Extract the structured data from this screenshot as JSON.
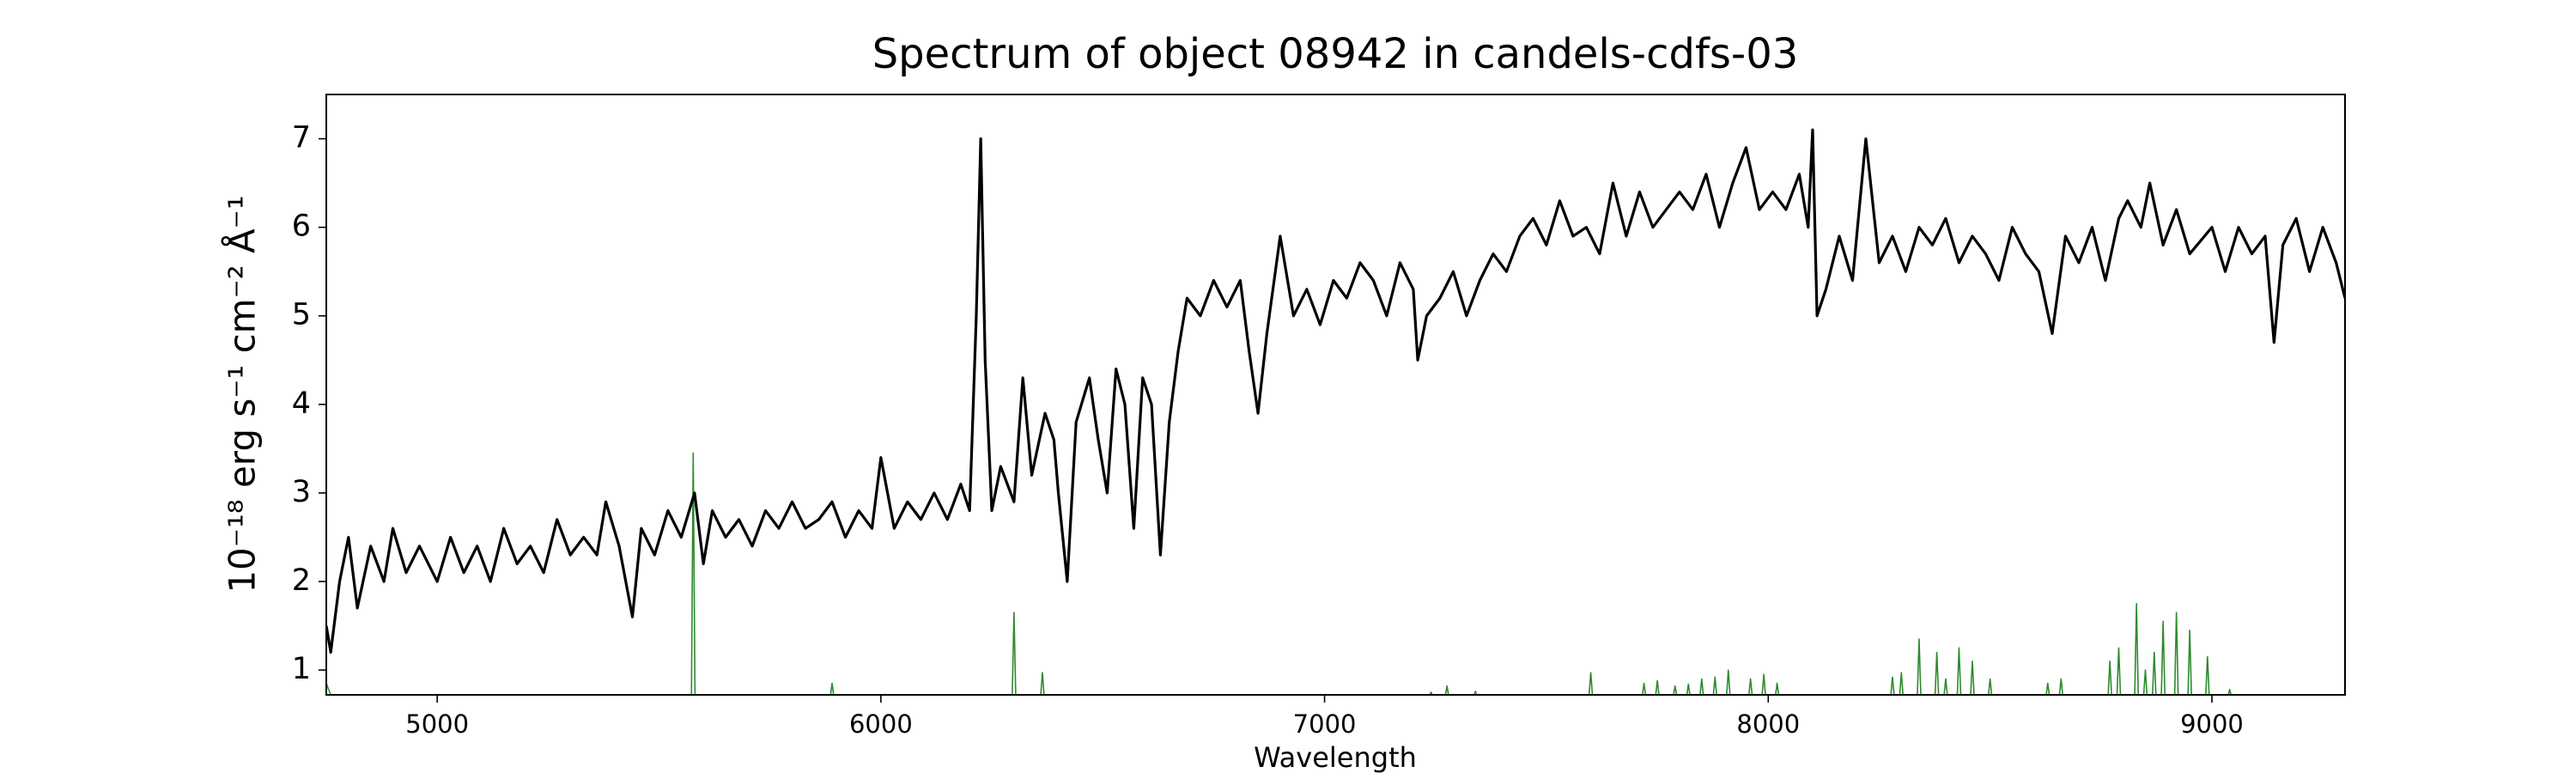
{
  "chart_data": {
    "type": "line",
    "title": "Spectrum of object 08942 in candels-cdfs-03",
    "xlabel": "Wavelength",
    "ylabel": "10⁻¹⁸ erg s⁻¹ cm⁻² Å⁻¹",
    "xlim": [
      4750,
      9300
    ],
    "ylim": [
      0.72,
      7.5
    ],
    "xticks": [
      5000,
      6000,
      7000,
      8000,
      9000
    ],
    "yticks": [
      1,
      2,
      3,
      4,
      5,
      6,
      7
    ],
    "series": [
      {
        "color": "#000000",
        "x": [
          4750,
          4760,
          4780,
          4800,
          4820,
          4850,
          4880,
          4900,
          4930,
          4960,
          5000,
          5030,
          5060,
          5090,
          5120,
          5150,
          5180,
          5210,
          5240,
          5270,
          5300,
          5330,
          5360,
          5380,
          5410,
          5440,
          5460,
          5490,
          5520,
          5550,
          5580,
          5600,
          5620,
          5650,
          5680,
          5710,
          5740,
          5770,
          5800,
          5830,
          5860,
          5890,
          5920,
          5950,
          5980,
          6000,
          6030,
          6060,
          6090,
          6120,
          6150,
          6180,
          6200,
          6215,
          6225,
          6235,
          6250,
          6270,
          6300,
          6320,
          6340,
          6370,
          6390,
          6400,
          6420,
          6440,
          6470,
          6490,
          6510,
          6530,
          6550,
          6570,
          6590,
          6610,
          6630,
          6650,
          6670,
          6690,
          6720,
          6750,
          6780,
          6810,
          6830,
          6850,
          6870,
          6900,
          6930,
          6960,
          6990,
          7020,
          7050,
          7080,
          7110,
          7140,
          7170,
          7200,
          7210,
          7230,
          7260,
          7290,
          7320,
          7350,
          7380,
          7410,
          7440,
          7470,
          7500,
          7530,
          7560,
          7590,
          7620,
          7650,
          7680,
          7710,
          7740,
          7770,
          7800,
          7830,
          7860,
          7890,
          7920,
          7950,
          7980,
          8010,
          8040,
          8070,
          8090,
          8100,
          8110,
          8130,
          8160,
          8190,
          8220,
          8250,
          8280,
          8310,
          8340,
          8370,
          8400,
          8430,
          8460,
          8490,
          8520,
          8550,
          8580,
          8610,
          8640,
          8670,
          8700,
          8730,
          8760,
          8790,
          8810,
          8840,
          8860,
          8890,
          8920,
          8950,
          9000,
          9030,
          9060,
          9090,
          9120,
          9140,
          9160,
          9190,
          9220,
          9250,
          9280,
          9300
        ],
        "values": [
          1.5,
          1.2,
          2.0,
          2.5,
          1.7,
          2.4,
          2.0,
          2.6,
          2.1,
          2.4,
          2.0,
          2.5,
          2.1,
          2.4,
          2.0,
          2.6,
          2.2,
          2.4,
          2.1,
          2.7,
          2.3,
          2.5,
          2.3,
          2.9,
          2.4,
          1.6,
          2.6,
          2.3,
          2.8,
          2.5,
          3.0,
          2.2,
          2.8,
          2.5,
          2.7,
          2.4,
          2.8,
          2.6,
          2.9,
          2.6,
          2.7,
          2.9,
          2.5,
          2.8,
          2.6,
          3.4,
          2.6,
          2.9,
          2.7,
          3.0,
          2.7,
          3.1,
          2.8,
          5.0,
          7.0,
          4.5,
          2.8,
          3.3,
          2.9,
          4.3,
          3.2,
          3.9,
          3.6,
          3.0,
          2.0,
          3.8,
          4.3,
          3.6,
          3.0,
          4.4,
          4.0,
          2.6,
          4.3,
          4.0,
          2.3,
          3.8,
          4.6,
          5.2,
          5.0,
          5.4,
          5.1,
          5.4,
          4.6,
          3.9,
          4.8,
          5.9,
          5.0,
          5.3,
          4.9,
          5.4,
          5.2,
          5.6,
          5.4,
          5.0,
          5.6,
          5.3,
          4.5,
          5.0,
          5.2,
          5.5,
          5.0,
          5.4,
          5.7,
          5.5,
          5.9,
          6.1,
          5.8,
          6.3,
          5.9,
          6.0,
          5.7,
          6.5,
          5.9,
          6.4,
          6.0,
          6.2,
          6.4,
          6.2,
          6.6,
          6.0,
          6.5,
          6.9,
          6.2,
          6.4,
          6.2,
          6.6,
          6.0,
          7.1,
          5.0,
          5.3,
          5.9,
          5.4,
          7.0,
          5.6,
          5.9,
          5.5,
          6.0,
          5.8,
          6.1,
          5.6,
          5.9,
          5.7,
          5.4,
          6.0,
          5.7,
          5.5,
          4.8,
          5.9,
          5.6,
          6.0,
          5.4,
          6.1,
          6.3,
          6.0,
          6.5,
          5.8,
          6.2,
          5.7,
          6.0,
          5.5,
          6.0,
          5.7,
          5.9,
          4.7,
          5.8,
          6.1,
          5.5,
          6.0,
          5.6,
          5.2
        ]
      },
      {
        "color": "#2e8b2e",
        "x": [
          4750,
          4760,
          4770,
          5573,
          5577,
          5581,
          5886,
          5890,
          5894,
          6296,
          6300,
          6304,
          6360,
          6364,
          6368,
          7236,
          7240,
          7244,
          7272,
          7276,
          7280,
          7336,
          7340,
          7344,
          7596,
          7600,
          7604,
          7716,
          7720,
          7724,
          7746,
          7750,
          7754,
          7786,
          7790,
          7794,
          7816,
          7820,
          7824,
          7846,
          7850,
          7854,
          7876,
          7880,
          7884,
          7906,
          7910,
          7914,
          7956,
          7960,
          7964,
          7986,
          7990,
          7994,
          8016,
          8020,
          8024,
          8276,
          8280,
          8284,
          8296,
          8300,
          8304,
          8336,
          8340,
          8344,
          8376,
          8380,
          8384,
          8396,
          8400,
          8404,
          8426,
          8430,
          8434,
          8456,
          8460,
          8464,
          8496,
          8500,
          8504,
          8626,
          8630,
          8634,
          8656,
          8660,
          8664,
          8766,
          8770,
          8774,
          8786,
          8790,
          8794,
          8826,
          8830,
          8834,
          8846,
          8850,
          8854,
          8866,
          8870,
          8874,
          8886,
          8890,
          8894,
          8916,
          8920,
          8924,
          8946,
          8950,
          8954,
          8986,
          8990,
          8994,
          9036,
          9040,
          9044,
          9300
        ],
        "values": [
          0.85,
          0.72,
          0.7,
          0.7,
          3.45,
          0.7,
          0.7,
          0.85,
          0.7,
          0.7,
          1.65,
          0.7,
          0.7,
          0.97,
          0.7,
          0.7,
          0.75,
          0.7,
          0.7,
          0.82,
          0.7,
          0.7,
          0.76,
          0.7,
          0.7,
          0.97,
          0.7,
          0.7,
          0.85,
          0.7,
          0.7,
          0.88,
          0.7,
          0.7,
          0.82,
          0.7,
          0.7,
          0.84,
          0.7,
          0.7,
          0.9,
          0.7,
          0.7,
          0.92,
          0.7,
          0.7,
          1.0,
          0.7,
          0.7,
          0.9,
          0.7,
          0.7,
          0.95,
          0.7,
          0.7,
          0.85,
          0.7,
          0.7,
          0.92,
          0.7,
          0.7,
          0.97,
          0.7,
          0.7,
          1.35,
          0.7,
          0.7,
          1.2,
          0.7,
          0.7,
          0.9,
          0.7,
          0.7,
          1.25,
          0.7,
          0.7,
          1.1,
          0.7,
          0.7,
          0.9,
          0.7,
          0.7,
          0.85,
          0.7,
          0.7,
          0.9,
          0.7,
          0.7,
          1.1,
          0.7,
          0.7,
          1.25,
          0.7,
          0.7,
          1.75,
          0.7,
          0.7,
          1.0,
          0.7,
          0.7,
          1.2,
          0.7,
          0.7,
          1.55,
          0.7,
          0.7,
          1.65,
          0.7,
          0.7,
          1.45,
          0.7,
          0.7,
          1.15,
          0.7,
          0.7,
          0.78,
          0.7,
          0.7
        ]
      }
    ]
  }
}
